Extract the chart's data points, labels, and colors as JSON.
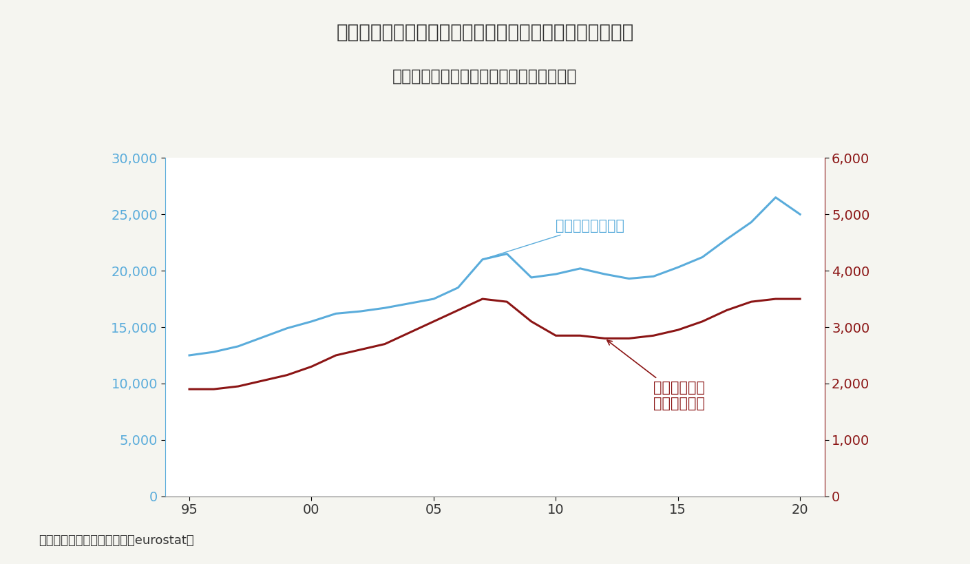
{
  "title_line1": "世界金融危機～ユーロ危機は投資停滞という傷痕を残した",
  "title_line2": "ユーロ圏固定資本形成（単位：億ユーロ）",
  "source": "（資料）欧州委員会統計局（eurostat）",
  "years": [
    95,
    96,
    97,
    98,
    99,
    100,
    101,
    102,
    103,
    104,
    105,
    106,
    107,
    108,
    109,
    110,
    111,
    112,
    113,
    114,
    115,
    116,
    117,
    118,
    119,
    120
  ],
  "total": [
    12500,
    12800,
    13300,
    14100,
    14900,
    15500,
    16200,
    16400,
    16700,
    17100,
    17500,
    18500,
    21000,
    21500,
    19400,
    19700,
    20200,
    19700,
    19300,
    19500,
    20300,
    21200,
    22800,
    24300,
    26500,
    25000
  ],
  "gov": [
    1900,
    1900,
    1950,
    2050,
    2150,
    2300,
    2500,
    2600,
    2700,
    2900,
    3100,
    3300,
    3500,
    3450,
    3100,
    2850,
    2850,
    2800,
    2800,
    2850,
    2950,
    3100,
    3300,
    3450,
    3500,
    3500
  ],
  "left_ylim": [
    0,
    30000
  ],
  "right_ylim": [
    0,
    6000
  ],
  "left_yticks": [
    0,
    5000,
    10000,
    15000,
    20000,
    25000,
    30000
  ],
  "right_yticks": [
    0,
    1000,
    2000,
    3000,
    4000,
    5000,
    6000
  ],
  "xtick_positions": [
    95,
    100,
    105,
    110,
    115,
    120
  ],
  "xtick_labels": [
    "95",
    "00",
    "05",
    "10",
    "15",
    "20"
  ],
  "xlim": [
    94,
    121
  ],
  "blue_color": "#5aacdb",
  "red_color": "#8b1515",
  "title_color": "#333333",
  "left_axis_color": "#5aacdb",
  "right_axis_color": "#8b1515",
  "label_total": "総計（左目盛り）",
  "label_gov_line1": "うち一般政府",
  "label_gov_line2": "（右目盛り）",
  "bg_color": "#f5f5f0",
  "plot_bg_color": "#ffffff",
  "line_width": 2.2,
  "title_fontsize": 20,
  "subtitle_fontsize": 17,
  "tick_fontsize": 14,
  "label_fontsize": 15,
  "source_fontsize": 13
}
